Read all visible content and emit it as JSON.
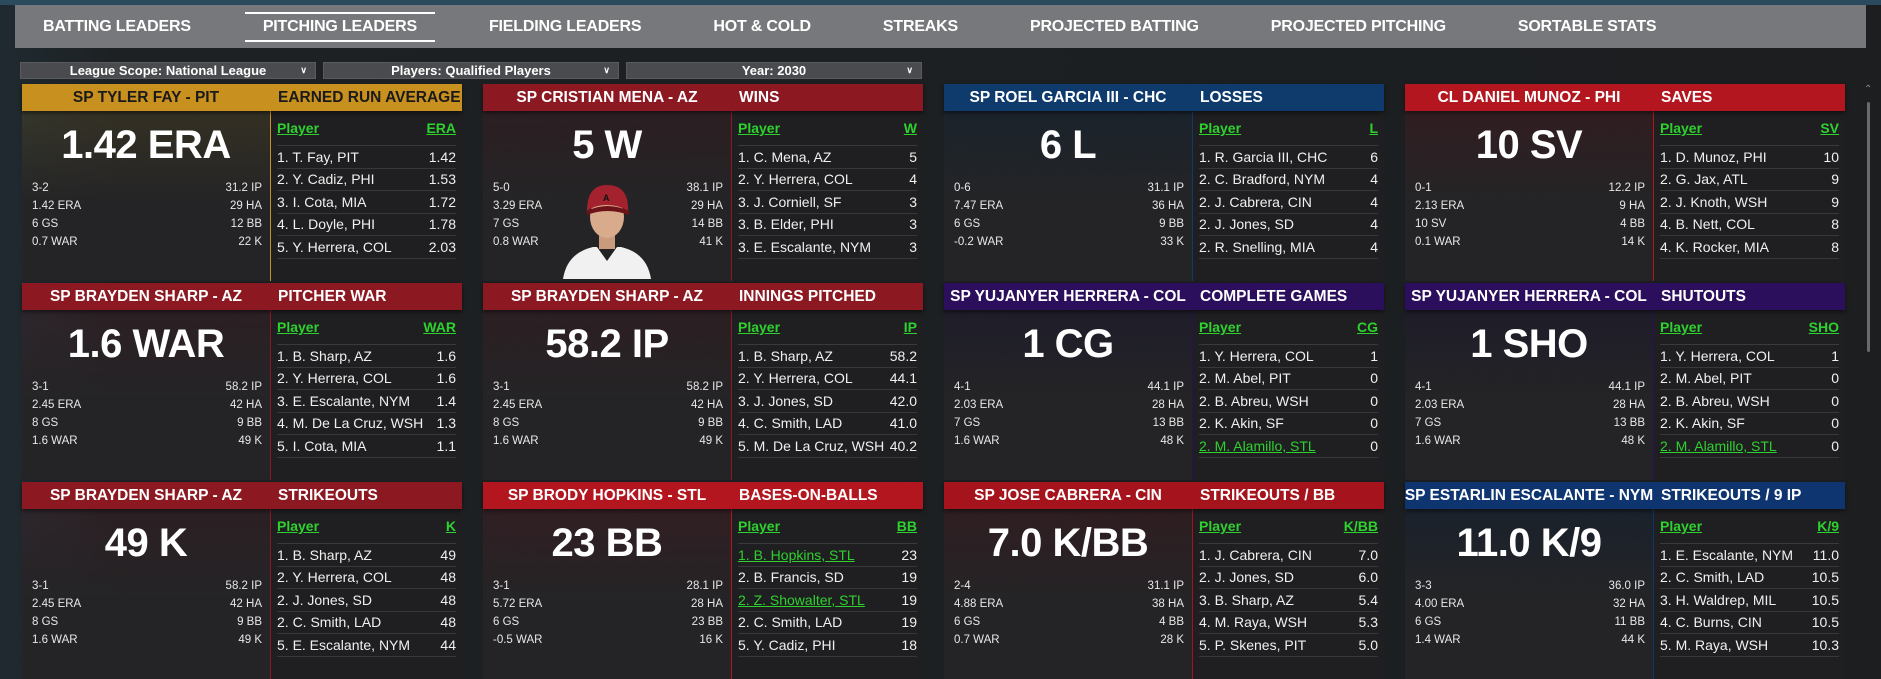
{
  "tabs": [
    {
      "label": "BATTING LEADERS",
      "active": false
    },
    {
      "label": "PITCHING LEADERS",
      "active": true
    },
    {
      "label": "FIELDING LEADERS",
      "active": false
    },
    {
      "label": "HOT & COLD",
      "active": false
    },
    {
      "label": "STREAKS",
      "active": false
    },
    {
      "label": "PROJECTED BATTING",
      "active": false
    },
    {
      "label": "PROJECTED PITCHING",
      "active": false
    },
    {
      "label": "SORTABLE STATS",
      "active": false
    }
  ],
  "filters": [
    {
      "label": "League Scope: National League"
    },
    {
      "label": "Players: Qualified Players"
    },
    {
      "label": "Year: 2030"
    }
  ],
  "table_player_header": "Player",
  "cards": [
    {
      "color": "#c8901e",
      "dark_text": true,
      "player": "SP TYLER FAY - PIT",
      "category": "EARNED RUN AVERAGE",
      "big": "1.42 ERA",
      "stats_left": [
        "3-2",
        "1.42 ERA",
        "6 GS",
        "0.7 WAR"
      ],
      "stats_right": [
        "31.2 IP",
        "29 HA",
        "12 BB",
        "22 K"
      ],
      "col": "ERA",
      "rows": [
        {
          "name": "1. T. Fay, PIT",
          "value": "1.42"
        },
        {
          "name": "2. Y. Cadiz, PHI",
          "value": "1.53"
        },
        {
          "name": "3. I. Cota, MIA",
          "value": "1.72"
        },
        {
          "name": "4. L. Doyle, PHI",
          "value": "1.78"
        },
        {
          "name": "5. Y. Herrera, COL",
          "value": "2.03"
        }
      ]
    },
    {
      "color": "#8c1822",
      "player": "SP CRISTIAN MENA - AZ",
      "category": "WINS",
      "big": "5 W",
      "photo": true,
      "stats_left": [
        "5-0",
        "3.29 ERA",
        "7 GS",
        "0.8 WAR"
      ],
      "stats_right": [
        "38.1 IP",
        "29 HA",
        "14 BB",
        "41 K"
      ],
      "col": "W",
      "rows": [
        {
          "name": "1. C. Mena, AZ",
          "value": "5"
        },
        {
          "name": "2. Y. Herrera, COL",
          "value": "4"
        },
        {
          "name": "3. J. Corniell, SF",
          "value": "3"
        },
        {
          "name": "3. B. Elder, PHI",
          "value": "3"
        },
        {
          "name": "3. E. Escalante, NYM",
          "value": "3"
        }
      ]
    },
    {
      "color": "#0e3a6c",
      "player": "SP ROEL GARCIA III - CHC",
      "category": "LOSSES",
      "big": "6 L",
      "stats_left": [
        "0-6",
        "7.47 ERA",
        "6 GS",
        "-0.2 WAR"
      ],
      "stats_right": [
        "31.1 IP",
        "36 HA",
        "9 BB",
        "33 K"
      ],
      "col": "L",
      "rows": [
        {
          "name": "1. R. Garcia III, CHC",
          "value": "6"
        },
        {
          "name": "2. C. Bradford, NYM",
          "value": "4"
        },
        {
          "name": "2. J. Cabrera, CIN",
          "value": "4"
        },
        {
          "name": "2. J. Jones, SD",
          "value": "4"
        },
        {
          "name": "2. R. Snelling, MIA",
          "value": "4"
        }
      ]
    },
    {
      "color": "#b3161f",
      "player": "CL DANIEL MUNOZ - PHI",
      "category": "SAVES",
      "big": "10 SV",
      "stats_left": [
        "0-1",
        "2.13 ERA",
        "10 SV",
        "0.1 WAR"
      ],
      "stats_right": [
        "12.2 IP",
        "9 HA",
        "4 BB",
        "14 K"
      ],
      "col": "SV",
      "rows": [
        {
          "name": "1. D. Munoz, PHI",
          "value": "10"
        },
        {
          "name": "2. G. Jax, ATL",
          "value": "9"
        },
        {
          "name": "2. J. Knoth, WSH",
          "value": "9"
        },
        {
          "name": "4. B. Nett, COL",
          "value": "8"
        },
        {
          "name": "4. K. Rocker, MIA",
          "value": "8"
        }
      ]
    },
    {
      "color": "#8c1822",
      "player": "SP BRAYDEN SHARP - AZ",
      "category": "PITCHER WAR",
      "big": "1.6 WAR",
      "stats_left": [
        "3-1",
        "2.45 ERA",
        "8 GS",
        "1.6 WAR"
      ],
      "stats_right": [
        "58.2 IP",
        "42 HA",
        "9 BB",
        "49 K"
      ],
      "col": "WAR",
      "rows": [
        {
          "name": "1. B. Sharp, AZ",
          "value": "1.6"
        },
        {
          "name": "2. Y. Herrera, COL",
          "value": "1.6"
        },
        {
          "name": "3. E. Escalante, NYM",
          "value": "1.4"
        },
        {
          "name": "4. M. De La Cruz, WSH",
          "value": "1.3"
        },
        {
          "name": "5. I. Cota, MIA",
          "value": "1.1"
        }
      ]
    },
    {
      "color": "#8c1822",
      "player": "SP BRAYDEN SHARP - AZ",
      "category": "INNINGS PITCHED",
      "big": "58.2 IP",
      "stats_left": [
        "3-1",
        "2.45 ERA",
        "8 GS",
        "1.6 WAR"
      ],
      "stats_right": [
        "58.2 IP",
        "42 HA",
        "9 BB",
        "49 K"
      ],
      "col": "IP",
      "rows": [
        {
          "name": "1. B. Sharp, AZ",
          "value": "58.2"
        },
        {
          "name": "2. Y. Herrera, COL",
          "value": "44.1"
        },
        {
          "name": "3. J. Jones, SD",
          "value": "42.0"
        },
        {
          "name": "4. C. Smith, LAD",
          "value": "41.0"
        },
        {
          "name": "5. M. De La Cruz, WSH",
          "value": "40.2"
        }
      ]
    },
    {
      "color": "#2c0f5c",
      "player": "SP YUJANYER HERRERA - COL",
      "category": "COMPLETE GAMES",
      "big": "1 CG",
      "stats_left": [
        "4-1",
        "2.03 ERA",
        "7 GS",
        "1.6 WAR"
      ],
      "stats_right": [
        "44.1 IP",
        "28 HA",
        "13 BB",
        "48 K"
      ],
      "col": "CG",
      "rows": [
        {
          "name": "1. Y. Herrera, COL",
          "value": "1"
        },
        {
          "name": "2. M. Abel, PIT",
          "value": "0"
        },
        {
          "name": "2. B. Abreu, WSH",
          "value": "0"
        },
        {
          "name": "2. K. Akin, SF",
          "value": "0"
        },
        {
          "name": "2. M. Alamillo, STL",
          "value": "0",
          "highlight": true
        }
      ]
    },
    {
      "color": "#2c0f5c",
      "player": "SP YUJANYER HERRERA - COL",
      "category": "SHUTOUTS",
      "big": "1 SHO",
      "stats_left": [
        "4-1",
        "2.03 ERA",
        "7 GS",
        "1.6 WAR"
      ],
      "stats_right": [
        "44.1 IP",
        "28 HA",
        "13 BB",
        "48 K"
      ],
      "col": "SHO",
      "rows": [
        {
          "name": "1. Y. Herrera, COL",
          "value": "1"
        },
        {
          "name": "2. M. Abel, PIT",
          "value": "0"
        },
        {
          "name": "2. B. Abreu, WSH",
          "value": "0"
        },
        {
          "name": "2. K. Akin, SF",
          "value": "0"
        },
        {
          "name": "2. M. Alamillo, STL",
          "value": "0",
          "highlight": true
        }
      ]
    },
    {
      "color": "#8c1822",
      "player": "SP BRAYDEN SHARP - AZ",
      "category": "STRIKEOUTS",
      "big": "49 K",
      "stats_left": [
        "3-1",
        "2.45 ERA",
        "8 GS",
        "1.6 WAR"
      ],
      "stats_right": [
        "58.2 IP",
        "42 HA",
        "9 BB",
        "49 K"
      ],
      "col": "K",
      "rows": [
        {
          "name": "1. B. Sharp, AZ",
          "value": "49"
        },
        {
          "name": "2. Y. Herrera, COL",
          "value": "48"
        },
        {
          "name": "2. J. Jones, SD",
          "value": "48"
        },
        {
          "name": "2. C. Smith, LAD",
          "value": "48"
        },
        {
          "name": "5. E. Escalante, NYM",
          "value": "44"
        }
      ]
    },
    {
      "color": "#b3161f",
      "player": "SP BRODY HOPKINS - STL",
      "category": "BASES-ON-BALLS",
      "big": "23 BB",
      "stats_left": [
        "3-1",
        "5.72 ERA",
        "6 GS",
        "-0.5 WAR"
      ],
      "stats_right": [
        "28.1 IP",
        "28 HA",
        "23 BB",
        "16 K"
      ],
      "col": "BB",
      "rows": [
        {
          "name": "1. B. Hopkins, STL",
          "value": "23",
          "highlight": true
        },
        {
          "name": "2. B. Francis, SD",
          "value": "19"
        },
        {
          "name": "2. Z. Showalter, STL",
          "value": "19",
          "highlight": true
        },
        {
          "name": "2. C. Smith, LAD",
          "value": "19"
        },
        {
          "name": "5. Y. Cadiz, PHI",
          "value": "18"
        }
      ]
    },
    {
      "color": "#a5141d",
      "player": "SP JOSE CABRERA - CIN",
      "category": "STRIKEOUTS / BB",
      "big": "7.0 K/BB",
      "stats_left": [
        "2-4",
        "4.88 ERA",
        "6 GS",
        "0.7 WAR"
      ],
      "stats_right": [
        "31.1 IP",
        "38 HA",
        "4 BB",
        "28 K"
      ],
      "col": "K/BB",
      "rows": [
        {
          "name": "1. J. Cabrera, CIN",
          "value": "7.0"
        },
        {
          "name": "2. J. Jones, SD",
          "value": "6.0"
        },
        {
          "name": "3. B. Sharp, AZ",
          "value": "5.4"
        },
        {
          "name": "4. M. Raya, WSH",
          "value": "5.3"
        },
        {
          "name": "5. P. Skenes, PIT",
          "value": "5.0"
        }
      ]
    },
    {
      "color": "#0e3570",
      "player": "SP ESTARLIN ESCALANTE - NYM",
      "category": "STRIKEOUTS / 9 IP",
      "big": "11.0 K/9",
      "stats_left": [
        "3-3",
        "4.00 ERA",
        "6 GS",
        "1.4 WAR"
      ],
      "stats_right": [
        "36.0 IP",
        "32 HA",
        "11 BB",
        "44 K"
      ],
      "col": "K/9",
      "rows": [
        {
          "name": "1. E. Escalante, NYM",
          "value": "11.0"
        },
        {
          "name": "2. C. Smith, LAD",
          "value": "10.5"
        },
        {
          "name": "3. H. Waldrep, MIL",
          "value": "10.5"
        },
        {
          "name": "4. C. Burns, CIN",
          "value": "10.5"
        },
        {
          "name": "5. M. Raya, WSH",
          "value": "10.3"
        }
      ]
    }
  ]
}
